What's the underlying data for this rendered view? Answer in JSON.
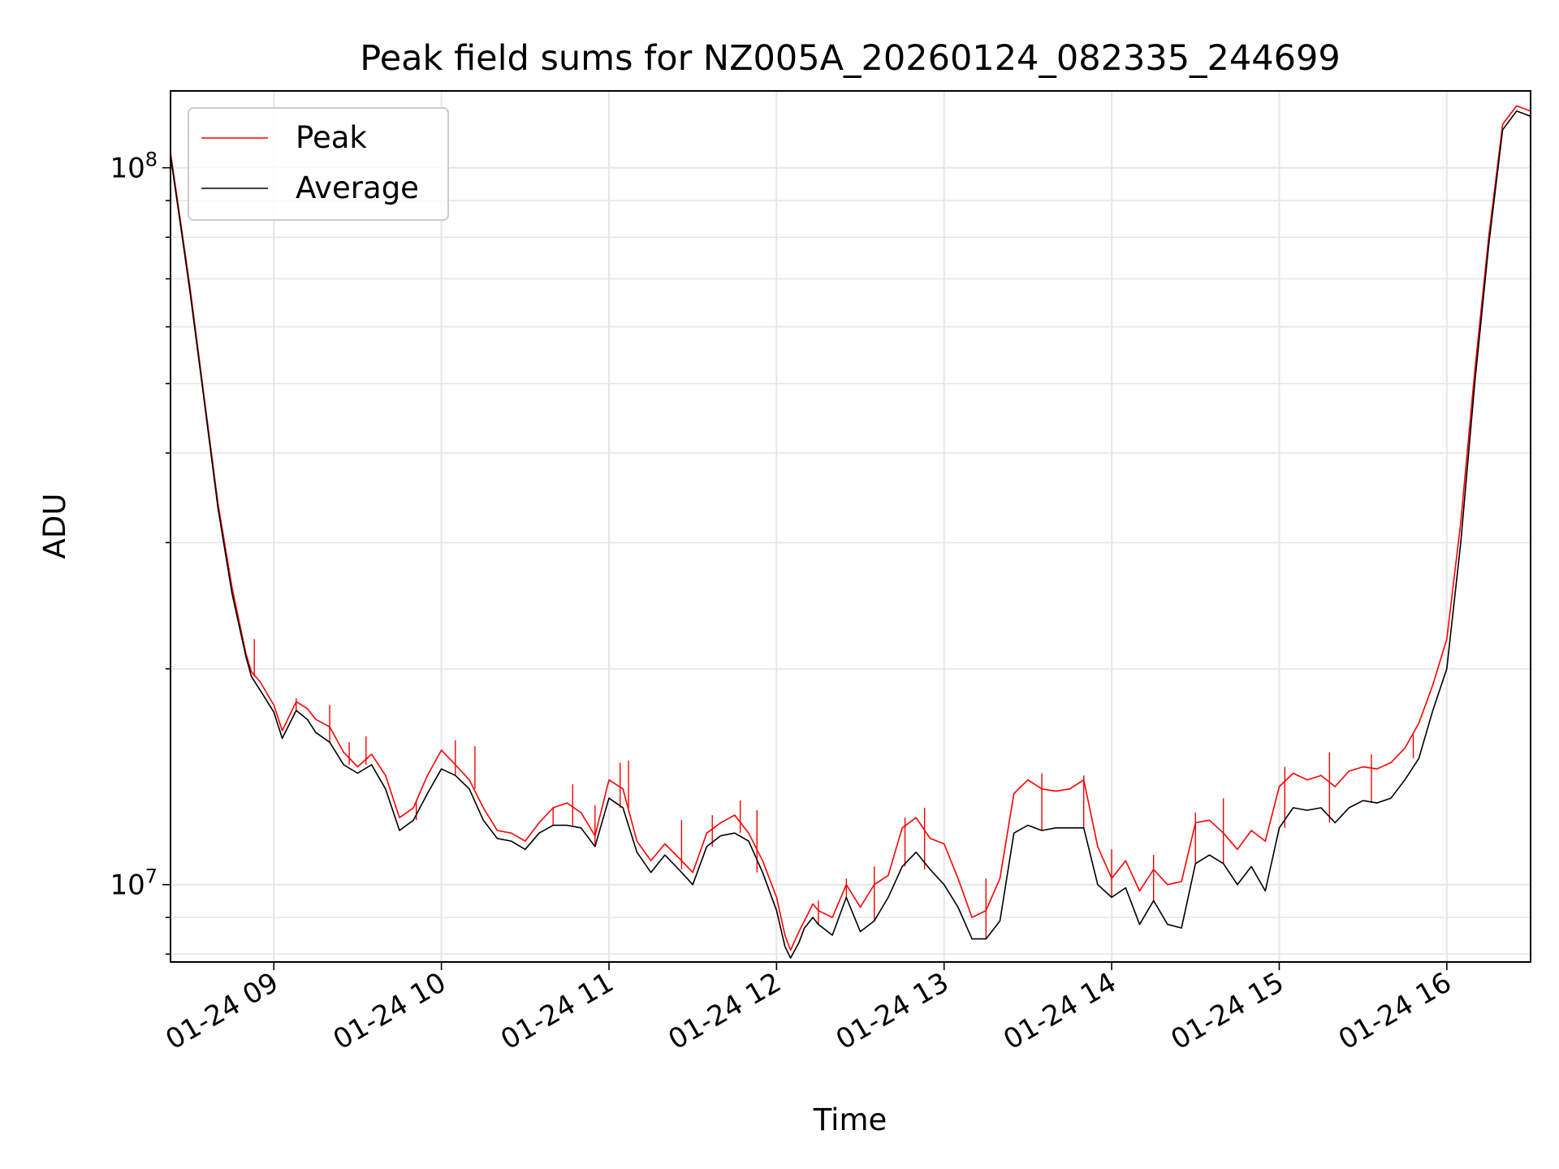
{
  "chart_data": {
    "type": "line",
    "title": "Peak field sums for NZ005A_20260124_082335_244699",
    "xlabel": "Time",
    "ylabel": "ADU",
    "y_scale": "log",
    "grid": true,
    "legend_position": "upper left",
    "xlim": [
      "2026-01-24 08:23",
      "2026-01-24 16:30"
    ],
    "ylim": [
      7800000,
      128000000
    ],
    "x_tick_labels": [
      "01-24 09",
      "01-24 10",
      "01-24 11",
      "01-24 12",
      "01-24 13",
      "01-24 14",
      "01-24 15",
      "01-24 16"
    ],
    "x_tick_values": [
      "2026-01-24 09:00",
      "2026-01-24 10:00",
      "2026-01-24 11:00",
      "2026-01-24 12:00",
      "2026-01-24 13:00",
      "2026-01-24 14:00",
      "2026-01-24 15:00",
      "2026-01-24 16:00"
    ],
    "y_tick_labels": [
      {
        "value": 10000000,
        "base": "10",
        "exp": "7"
      },
      {
        "value": 100000000,
        "base": "10",
        "exp": "8"
      }
    ],
    "series": [
      {
        "name": "Peak",
        "color": "#ff0000",
        "x": [
          "08:23",
          "08:27",
          "08:30",
          "08:35",
          "08:40",
          "08:45",
          "08:50",
          "08:52",
          "08:55",
          "09:00",
          "09:03",
          "09:08",
          "09:12",
          "09:15",
          "09:20",
          "09:25",
          "09:30",
          "09:35",
          "09:40",
          "09:45",
          "09:50",
          "09:55",
          "10:00",
          "10:05",
          "10:10",
          "10:15",
          "10:20",
          "10:25",
          "10:30",
          "10:35",
          "10:40",
          "10:45",
          "10:50",
          "10:55",
          "11:00",
          "11:05",
          "11:10",
          "11:15",
          "11:20",
          "11:25",
          "11:30",
          "11:35",
          "11:40",
          "11:45",
          "11:50",
          "11:55",
          "12:00",
          "12:03",
          "12:05",
          "12:08",
          "12:10",
          "12:13",
          "12:15",
          "12:20",
          "12:25",
          "12:30",
          "12:35",
          "12:40",
          "12:45",
          "12:50",
          "12:55",
          "13:00",
          "13:05",
          "13:10",
          "13:15",
          "13:20",
          "13:25",
          "13:30",
          "13:35",
          "13:40",
          "13:45",
          "13:50",
          "13:55",
          "14:00",
          "14:05",
          "14:10",
          "14:15",
          "14:20",
          "14:25",
          "14:30",
          "14:35",
          "14:40",
          "14:45",
          "14:50",
          "14:55",
          "15:00",
          "15:05",
          "15:10",
          "15:15",
          "15:20",
          "15:25",
          "15:30",
          "15:35",
          "15:40",
          "15:45",
          "15:50",
          "15:55",
          "16:00",
          "16:05",
          "16:10",
          "16:15",
          "16:20",
          "16:25",
          "16:30"
        ],
        "y": [
          105000000,
          82000000,
          68000000,
          48000000,
          34000000,
          26000000,
          21000000,
          19800000,
          19200000,
          17800000,
          16400000,
          18000000,
          17600000,
          17000000,
          16600000,
          15300000,
          14600000,
          15200000,
          14200000,
          12400000,
          12800000,
          14200000,
          15400000,
          14700000,
          14000000,
          12800000,
          11900000,
          11800000,
          11500000,
          12200000,
          12800000,
          13000000,
          12600000,
          11700000,
          14000000,
          13600000,
          11500000,
          10800000,
          11400000,
          10900000,
          10400000,
          11800000,
          12200000,
          12500000,
          11800000,
          10800000,
          9600000,
          8500000,
          8100000,
          8600000,
          8900000,
          9400000,
          9200000,
          9000000,
          10000000,
          9300000,
          10000000,
          10300000,
          12000000,
          12400000,
          11600000,
          11400000,
          10200000,
          9000000,
          9200000,
          10200000,
          13400000,
          14000000,
          13600000,
          13500000,
          13600000,
          14000000,
          11300000,
          10200000,
          10800000,
          9800000,
          10500000,
          10000000,
          10100000,
          12200000,
          12300000,
          11800000,
          11200000,
          11900000,
          11500000,
          13700000,
          14300000,
          14000000,
          14200000,
          13700000,
          14400000,
          14600000,
          14500000,
          14800000,
          15500000,
          16800000,
          19000000,
          22000000,
          32000000,
          52000000,
          80000000,
          115000000,
          122000000,
          120000000
        ],
        "y_spikes": [
          {
            "x": "08:53",
            "y": 22000000
          },
          {
            "x": "09:08",
            "y": 18200000
          },
          {
            "x": "09:20",
            "y": 17800000
          },
          {
            "x": "09:27",
            "y": 15800000
          },
          {
            "x": "09:33",
            "y": 16100000
          },
          {
            "x": "09:51",
            "y": 13100000
          },
          {
            "x": "10:05",
            "y": 15900000
          },
          {
            "x": "10:12",
            "y": 15600000
          },
          {
            "x": "10:40",
            "y": 12800000
          },
          {
            "x": "10:47",
            "y": 13800000
          },
          {
            "x": "10:55",
            "y": 12900000
          },
          {
            "x": "11:04",
            "y": 14800000
          },
          {
            "x": "11:07",
            "y": 14900000
          },
          {
            "x": "11:26",
            "y": 12300000
          },
          {
            "x": "11:37",
            "y": 12500000
          },
          {
            "x": "11:47",
            "y": 13100000
          },
          {
            "x": "11:53",
            "y": 12700000
          },
          {
            "x": "12:15",
            "y": 9500000
          },
          {
            "x": "12:25",
            "y": 10200000
          },
          {
            "x": "12:35",
            "y": 10600000
          },
          {
            "x": "12:46",
            "y": 12400000
          },
          {
            "x": "12:53",
            "y": 12800000
          },
          {
            "x": "13:15",
            "y": 10200000
          },
          {
            "x": "13:35",
            "y": 14300000
          },
          {
            "x": "13:50",
            "y": 14200000
          },
          {
            "x": "14:00",
            "y": 11200000
          },
          {
            "x": "14:15",
            "y": 11000000
          },
          {
            "x": "14:30",
            "y": 12600000
          },
          {
            "x": "14:40",
            "y": 13200000
          },
          {
            "x": "15:02",
            "y": 14600000
          },
          {
            "x": "15:18",
            "y": 15300000
          },
          {
            "x": "15:33",
            "y": 15200000
          },
          {
            "x": "15:48",
            "y": 16200000
          },
          {
            "x": "15:55",
            "y": 17500000
          }
        ]
      },
      {
        "name": "Average",
        "color": "#000000",
        "x": [
          "08:23",
          "08:27",
          "08:30",
          "08:35",
          "08:40",
          "08:45",
          "08:50",
          "08:52",
          "08:55",
          "09:00",
          "09:03",
          "09:08",
          "09:12",
          "09:15",
          "09:20",
          "09:25",
          "09:30",
          "09:35",
          "09:40",
          "09:45",
          "09:50",
          "09:55",
          "10:00",
          "10:05",
          "10:10",
          "10:15",
          "10:20",
          "10:25",
          "10:30",
          "10:35",
          "10:40",
          "10:45",
          "10:50",
          "10:55",
          "11:00",
          "11:05",
          "11:10",
          "11:15",
          "11:20",
          "11:25",
          "11:30",
          "11:35",
          "11:40",
          "11:45",
          "11:50",
          "11:55",
          "12:00",
          "12:03",
          "12:05",
          "12:08",
          "12:10",
          "12:13",
          "12:15",
          "12:20",
          "12:25",
          "12:30",
          "12:35",
          "12:40",
          "12:45",
          "12:50",
          "12:55",
          "13:00",
          "13:05",
          "13:10",
          "13:15",
          "13:20",
          "13:25",
          "13:30",
          "13:35",
          "13:40",
          "13:45",
          "13:50",
          "13:55",
          "14:00",
          "14:05",
          "14:10",
          "14:15",
          "14:20",
          "14:25",
          "14:30",
          "14:35",
          "14:40",
          "14:45",
          "14:50",
          "14:55",
          "15:00",
          "15:05",
          "15:10",
          "15:15",
          "15:20",
          "15:25",
          "15:30",
          "15:35",
          "15:40",
          "15:45",
          "15:50",
          "15:55",
          "16:00",
          "16:05",
          "16:10",
          "16:15",
          "16:20",
          "16:25",
          "16:30"
        ],
        "y": [
          104000000,
          81000000,
          67000000,
          47500000,
          33500000,
          25500000,
          20800000,
          19500000,
          18700000,
          17400000,
          16000000,
          17500000,
          17000000,
          16300000,
          15800000,
          14700000,
          14300000,
          14700000,
          13600000,
          11900000,
          12300000,
          13400000,
          14500000,
          14200000,
          13600000,
          12300000,
          11600000,
          11500000,
          11200000,
          11800000,
          12100000,
          12100000,
          12000000,
          11300000,
          13200000,
          12800000,
          11100000,
          10400000,
          11000000,
          10500000,
          10000000,
          11300000,
          11700000,
          11800000,
          11500000,
          10400000,
          9200000,
          8200000,
          7900000,
          8300000,
          8700000,
          9000000,
          8800000,
          8500000,
          9600000,
          8600000,
          8900000,
          9600000,
          10600000,
          11100000,
          10500000,
          10000000,
          9300000,
          8400000,
          8400000,
          8900000,
          11800000,
          12100000,
          11900000,
          12000000,
          12000000,
          12000000,
          10000000,
          9600000,
          9900000,
          8800000,
          9500000,
          8800000,
          8700000,
          10700000,
          11000000,
          10700000,
          10000000,
          10600000,
          9800000,
          12000000,
          12800000,
          12700000,
          12800000,
          12200000,
          12800000,
          13100000,
          13000000,
          13200000,
          14000000,
          15000000,
          17500000,
          20000000,
          30000000,
          50000000,
          78000000,
          113000000,
          120000000,
          118000000
        ]
      }
    ]
  }
}
